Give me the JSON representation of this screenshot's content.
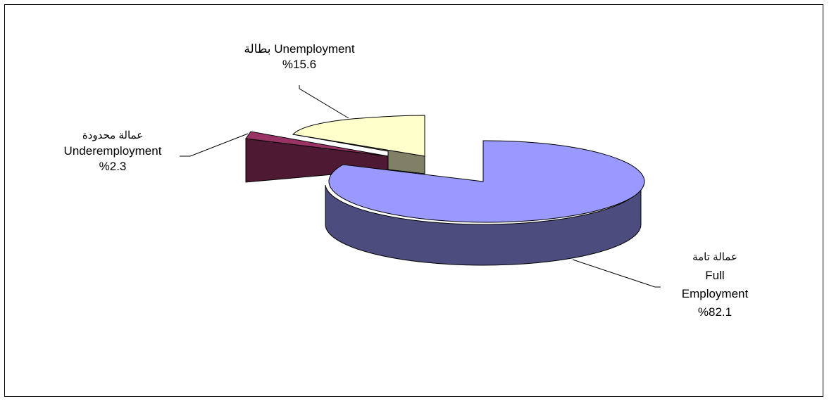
{
  "chart_data": {
    "type": "pie",
    "style": "3d-exploded",
    "slices": [
      {
        "ar": "عمالة تامة",
        "en": "Full",
        "en2": "Employment",
        "pct": "%82.1",
        "value": 82.1,
        "top": "#9999ff",
        "side": "#4c4c7f"
      },
      {
        "ar": "عمالة محدودة",
        "en": "Underemployment",
        "pct": "%2.3",
        "value": 2.3,
        "top": "#993366",
        "side": "#4d1933"
      },
      {
        "ar": "بطالة",
        "en": "Unemployment",
        "pct": "%15.6",
        "value": 15.6,
        "top": "#ffffcc",
        "side": "#808066"
      }
    ]
  }
}
